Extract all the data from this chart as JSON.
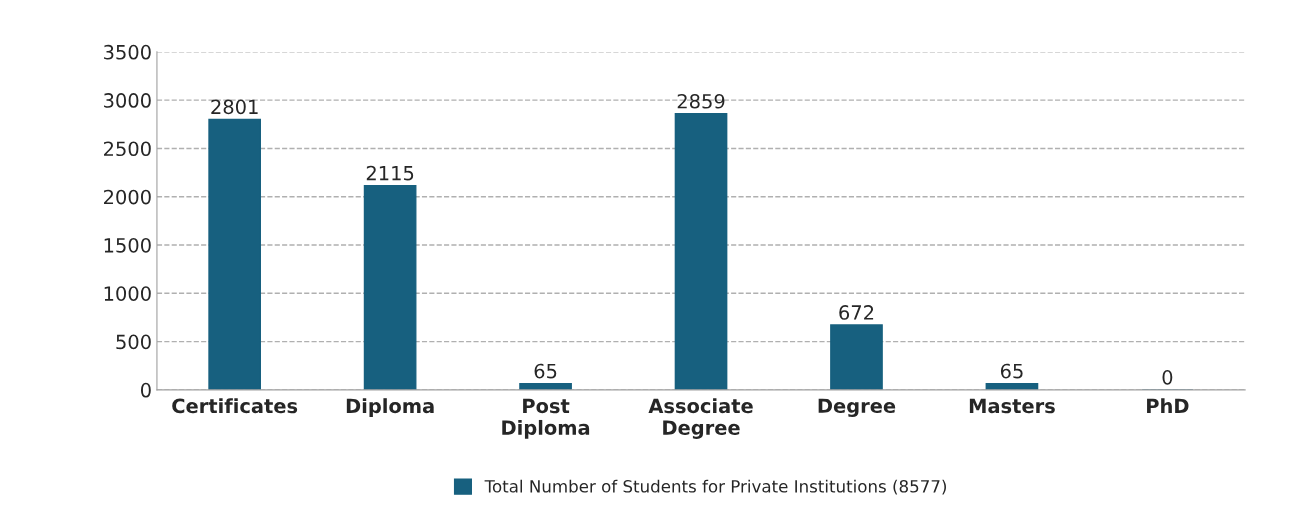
{
  "chart_data": {
    "type": "bar",
    "categories": [
      "Certificates",
      "Diploma",
      "Post\nDiploma",
      "Associate\nDegree",
      "Degree",
      "Masters",
      "PhD"
    ],
    "series": [
      {
        "name": "Total Number of Students for Private Institutions (8577)",
        "color": "#17607f",
        "values": [
          2801,
          2115,
          65,
          2859,
          672,
          65,
          0
        ],
        "value_labels": [
          "2801",
          "2115",
          "65",
          "2859",
          "672",
          "65",
          "0"
        ]
      }
    ],
    "ylim": [
      0,
      3500
    ],
    "yticks": [
      0,
      500,
      1000,
      1500,
      2000,
      2500,
      3000,
      3500
    ],
    "grid": "y",
    "legend": "bottom"
  }
}
